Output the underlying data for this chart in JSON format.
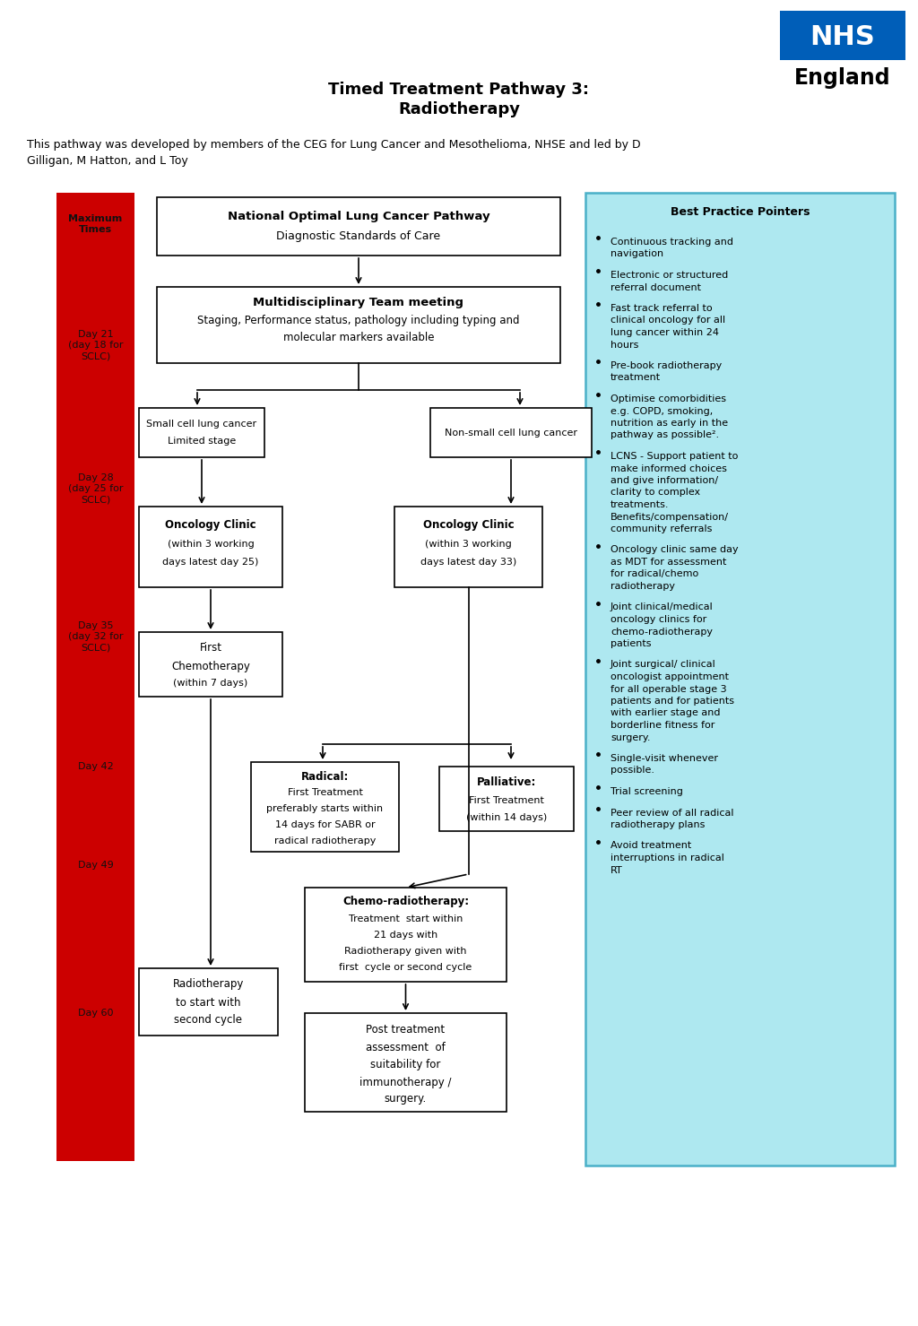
{
  "title_line1": "Timed Treatment Pathway 3:",
  "title_line2": "Radiotherapy",
  "subtitle": "This pathway was developed by members of the CEG for Lung Cancer and Mesothelioma, NHSE and led by D\nGilligan, M Hatton, and L Toy",
  "background_color": "#ffffff",
  "nhs_blue": "#005EB8",
  "red_color": "#cc0000",
  "cyan_color": "#aee8f0",
  "best_practice_title": "Best Practice Pointers",
  "best_practice_points": [
    "Continuous tracking and\nnavigation",
    "Electronic or structured\nreferral document",
    "Fast track referral to\nclinical oncology for all\nlung cancer within 24\nhours",
    "Pre-book radiotherapy\ntreatment",
    "Optimise comorbidities\ne.g. COPD, smoking,\nnutrition as early in the\npathway as possible².",
    "LCNS - Support patient to\nmake informed choices\nand give information/\nclarity to complex\ntreatments.\nBenefits/compensation/\ncommunity referrals",
    "Oncology clinic same day\nas MDT for assessment\nfor radical/chemo\nradiotherapy",
    "Joint clinical/medical\noncology clinics for\nchemo-radiotherapy\npatients",
    "Joint surgical/ clinical\noncologist appointment\nfor all operable stage 3\npatients and for patients\nwith earlier stage and\nborderline fitness for\nsurgery.",
    "Single-visit whenever\npossible.",
    "Trial screening",
    "Peer review of all radical\nradiotherapy plans",
    "Avoid treatment\ninterruptions in radical\nRT"
  ]
}
